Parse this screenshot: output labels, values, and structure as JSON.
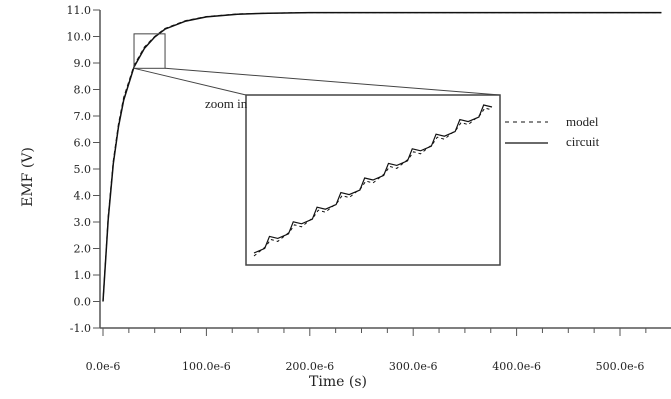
{
  "chart_data": {
    "type": "line",
    "title": "",
    "xlabel": "Time (s)",
    "ylabel": "EMF (V)",
    "xlim": [
      0,
      540
    ],
    "ylim": [
      -1,
      11
    ],
    "x_tick_labels": [
      "0.0e-6",
      "100.0e-6",
      "200.0e-6",
      "300.0e-6",
      "400.0e-6",
      "500.0e-6"
    ],
    "x_ticks": [
      0,
      100,
      200,
      300,
      400,
      500
    ],
    "y_tick_labels": [
      "-1.0",
      "0.0",
      "1.0",
      "2.0",
      "3.0",
      "4.0",
      "5.0",
      "6.0",
      "7.0",
      "8.0",
      "9.0",
      "10.0",
      "11.0"
    ],
    "y_ticks": [
      -1,
      0,
      1,
      2,
      3,
      4,
      5,
      6,
      7,
      8,
      9,
      10,
      11
    ],
    "series": [
      {
        "name": "model",
        "style": "dashed",
        "x": [
          0,
          5,
          10,
          15,
          20,
          30,
          40,
          50,
          60,
          80,
          100,
          130,
          160,
          200,
          250,
          300,
          400,
          540
        ],
        "y": [
          0,
          3.2,
          5.3,
          6.7,
          7.7,
          8.9,
          9.6,
          10.0,
          10.3,
          10.6,
          10.75,
          10.85,
          10.88,
          10.9,
          10.9,
          10.9,
          10.9,
          10.9
        ]
      },
      {
        "name": "circuit",
        "style": "solid",
        "x": [
          0,
          5,
          10,
          15,
          20,
          30,
          40,
          50,
          60,
          80,
          100,
          130,
          160,
          200,
          250,
          300,
          400,
          540
        ],
        "y": [
          0,
          3.1,
          5.2,
          6.6,
          7.6,
          8.85,
          9.55,
          9.98,
          10.28,
          10.58,
          10.74,
          10.84,
          10.88,
          10.9,
          10.9,
          10.9,
          10.9,
          10.9
        ]
      }
    ],
    "zoom_box_x": [
      30,
      60
    ],
    "zoom_box_y": [
      8.8,
      10.1
    ],
    "annotation": "zoom in",
    "legend": [
      "model",
      "circuit"
    ],
    "legend_position": "right",
    "colors": {
      "axis": "#555555",
      "line": "#111111",
      "inset_border": "#444444"
    }
  }
}
